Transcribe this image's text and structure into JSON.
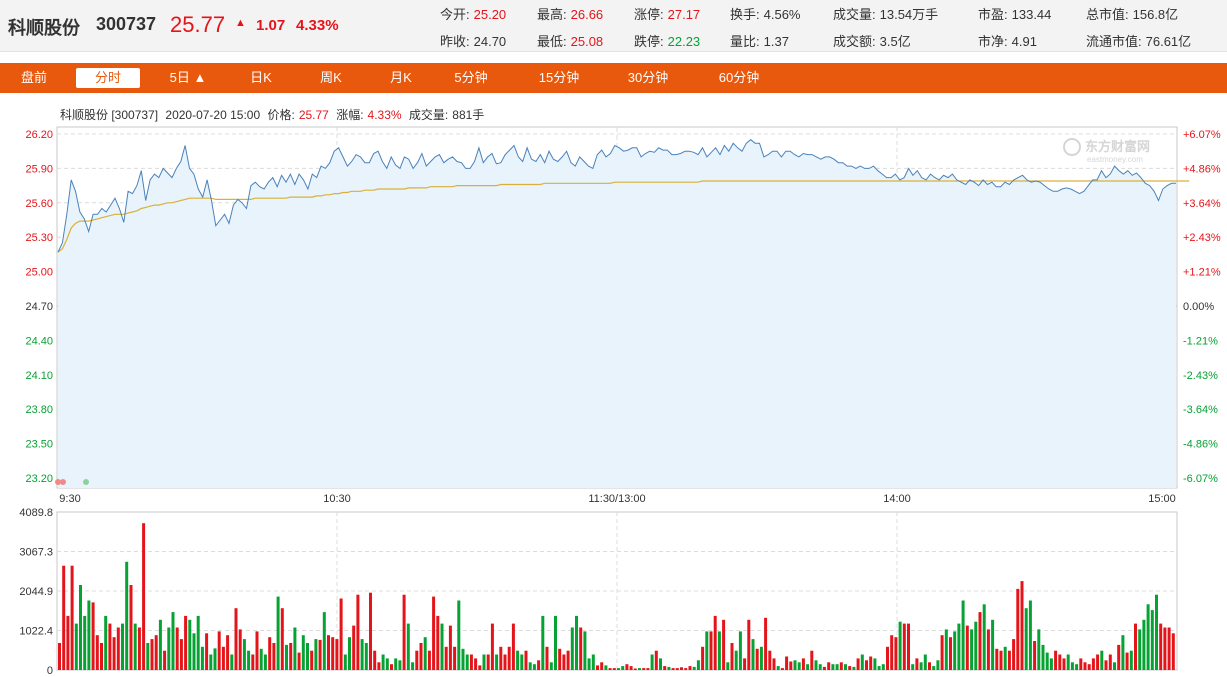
{
  "header": {
    "name": "科顺股份",
    "code": "300737",
    "price": "25.77",
    "arrow": "▲",
    "change": "1.07",
    "change_pct": "4.33%",
    "quotes": [
      {
        "label": "今开:",
        "value": "25.20",
        "color": "red"
      },
      {
        "label": "最高:",
        "value": "26.66",
        "color": "red"
      },
      {
        "label": "涨停:",
        "value": "27.17",
        "color": "red"
      },
      {
        "label": "换手:",
        "value": "4.56%",
        "color": "normal"
      },
      {
        "label": "成交量:",
        "value": "13.54万手",
        "color": "normal"
      },
      {
        "label": "市盈:",
        "value": "133.44",
        "color": "normal"
      },
      {
        "label": "总市值:",
        "value": "156.8亿",
        "color": "normal"
      },
      {
        "label": "昨收:",
        "value": "24.70",
        "color": "normal"
      },
      {
        "label": "最低:",
        "value": "25.08",
        "color": "red"
      },
      {
        "label": "跌停:",
        "value": "22.23",
        "color": "green"
      },
      {
        "label": "量比:",
        "value": "1.37",
        "color": "normal"
      },
      {
        "label": "成交额:",
        "value": "3.5亿",
        "color": "normal"
      },
      {
        "label": "市净:",
        "value": "4.91",
        "color": "normal"
      },
      {
        "label": "流通市值:",
        "value": "76.61亿",
        "color": "normal"
      }
    ]
  },
  "tabs": [
    {
      "label": "盘前",
      "active": false
    },
    {
      "label": "分时",
      "active": true
    },
    {
      "label": "5日 ▲",
      "active": false
    },
    {
      "label": "日K",
      "active": false
    },
    {
      "label": "周K",
      "active": false
    },
    {
      "label": "月K",
      "active": false
    },
    {
      "label": "5分钟",
      "active": false
    },
    {
      "label": "15分钟",
      "active": false
    },
    {
      "label": "30分钟",
      "active": false
    },
    {
      "label": "60分钟",
      "active": false
    }
  ],
  "info_line": {
    "name_code": "科顺股份 [300737]",
    "datetime": "2020-07-20 15:00",
    "price_label": "价格:",
    "price_value": "25.77",
    "change_label": "涨幅:",
    "change_value": "4.33%",
    "volume_label": "成交量:",
    "volume_value": "881手"
  },
  "watermark": {
    "brand": "东方财富网",
    "domain": "eastmoney.com"
  },
  "colors": {
    "price_line": "#4a82bb",
    "avg_line": "#d9b13a",
    "area_fill": "#e8f3fc",
    "up": "#e4151a",
    "down": "#07a234",
    "tab_bg": "#e9590d"
  },
  "chart_data": {
    "type": "line",
    "title": "",
    "prev_close": 24.7,
    "ylim": [
      23.2,
      26.2
    ],
    "yticks": [
      "26.20",
      "25.90",
      "25.60",
      "25.30",
      "25.00",
      "24.70",
      "24.40",
      "24.10",
      "23.80",
      "23.50",
      "23.20"
    ],
    "pct_ticks": [
      "+6.07%",
      "+4.86%",
      "+3.64%",
      "+2.43%",
      "+1.21%",
      "0.00%",
      "-1.21%",
      "-2.43%",
      "-3.64%",
      "-4.86%",
      "-6.07%"
    ],
    "x_ticks": [
      "9:30",
      "10:30",
      "11:30/13:00",
      "14:00",
      "15:00"
    ],
    "price": [
      25.17,
      25.25,
      25.5,
      25.8,
      25.7,
      25.52,
      25.46,
      25.35,
      25.5,
      25.5,
      25.55,
      25.52,
      25.58,
      25.64,
      25.55,
      25.43,
      25.7,
      25.68,
      25.75,
      25.88,
      25.62,
      25.8,
      25.85,
      25.82,
      25.9,
      25.86,
      25.82,
      25.9,
      25.96,
      26.1,
      25.9,
      25.85,
      25.72,
      25.65,
      25.8,
      25.62,
      25.4,
      25.45,
      25.5,
      25.42,
      25.58,
      25.63,
      25.6,
      25.55,
      25.75,
      25.78,
      25.74,
      25.72,
      25.78,
      25.82,
      25.74,
      25.84,
      25.78,
      25.85,
      25.76,
      25.85,
      25.8,
      25.72,
      25.85,
      25.82,
      25.92,
      25.9,
      25.95,
      26.05,
      26.08,
      26.0,
      25.92,
      25.96,
      26.02,
      26.0,
      25.95,
      25.95,
      26.03,
      26.05,
      25.96,
      25.9,
      26.0,
      25.93,
      25.9,
      26.0,
      25.98,
      25.9,
      25.95,
      26.03,
      25.92,
      25.96,
      26.0,
      26.02,
      25.95,
      25.98,
      26.0,
      25.96,
      25.95,
      25.9,
      25.9,
      25.96,
      26.08,
      25.95,
      26.0,
      26.03,
      25.94,
      25.95,
      26.02,
      26.06,
      26.1,
      26.0,
      25.96,
      26.08,
      25.98,
      25.96,
      26.02,
      25.95,
      26.05,
      25.98,
      25.96,
      26.0,
      26.05,
      25.95,
      25.92,
      26.0,
      25.96,
      25.92,
      25.9,
      26.02,
      26.06,
      26.0,
      26.03,
      26.1,
      26.08,
      26.05,
      26.06,
      26.08,
      26.08,
      26.0,
      26.03,
      26.05,
      26.04,
      26.08,
      26.06,
      26.06,
      26.02,
      26.02,
      26.03,
      26.05,
      26.05,
      26.04,
      26.02,
      26.08,
      26.0,
      26.04,
      26.08,
      26.02,
      26.1,
      26.05,
      26.12,
      26.08,
      26.05,
      26.12,
      26.15,
      26.12,
      26.12,
      26.0,
      26.02,
      26.05,
      26.05,
      26.0,
      26.05,
      26.05,
      26.02,
      26.0,
      26.03,
      26.02,
      26.02,
      26.0,
      25.98,
      26.0,
      26.0,
      25.98,
      25.95,
      25.95,
      25.92,
      25.92,
      25.9,
      25.92,
      25.9,
      25.9,
      25.92,
      25.88,
      25.85,
      25.82,
      25.82,
      25.85,
      25.8,
      25.82,
      25.9,
      25.84,
      25.88,
      25.82,
      25.8,
      25.85,
      25.82,
      25.8,
      25.84,
      25.82,
      25.85,
      25.8,
      25.78,
      25.76,
      25.8,
      25.78,
      25.75,
      25.8,
      25.76,
      25.78,
      25.74,
      25.74,
      25.78,
      25.76,
      25.8,
      25.82,
      25.84,
      25.8,
      25.78,
      25.79,
      25.78,
      25.75,
      25.72,
      25.7,
      25.7,
      25.72,
      25.73,
      25.72,
      25.7,
      25.68,
      25.7,
      25.75,
      25.8,
      25.8,
      25.88,
      25.82,
      25.85,
      25.92,
      25.88,
      25.85,
      25.88,
      25.84,
      25.86,
      25.82,
      25.77,
      25.75,
      25.7,
      25.62,
      25.72,
      25.75,
      25.77,
      25.77
    ],
    "avg_price": [
      25.17,
      25.2,
      25.28,
      25.38,
      25.42,
      25.44,
      25.44,
      25.44,
      25.45,
      25.46,
      25.47,
      25.48,
      25.49,
      25.5,
      25.5,
      25.5,
      25.51,
      25.52,
      25.53,
      25.55,
      25.56,
      25.57,
      25.58,
      25.58,
      25.59,
      25.6,
      25.6,
      25.61,
      25.62,
      25.63,
      25.64,
      25.64,
      25.64,
      25.64,
      25.64,
      25.64,
      25.63,
      25.63,
      25.63,
      25.63,
      25.63,
      25.63,
      25.63,
      25.63,
      25.63,
      25.64,
      25.64,
      25.64,
      25.64,
      25.64,
      25.64,
      25.64,
      25.64,
      25.65,
      25.65,
      25.65,
      25.65,
      25.65,
      25.65,
      25.66,
      25.66,
      25.67,
      25.67,
      25.68,
      25.68,
      25.69,
      25.69,
      25.7,
      25.7,
      25.7,
      25.71,
      25.71,
      25.71,
      25.72,
      25.72,
      25.72,
      25.72,
      25.72,
      25.72,
      25.72,
      25.73,
      25.73,
      25.73,
      25.73,
      25.73,
      25.74,
      25.74,
      25.74,
      25.74,
      25.74,
      25.74,
      25.75,
      25.75,
      25.75,
      25.75,
      25.75,
      25.75,
      25.75,
      25.75,
      25.75,
      25.75,
      25.76,
      25.76,
      25.76,
      25.76,
      25.76,
      25.76,
      25.76,
      25.76,
      25.76,
      25.76,
      25.77,
      25.77,
      25.77,
      25.77,
      25.77,
      25.77,
      25.77,
      25.77,
      25.77,
      25.77,
      25.77,
      25.77,
      25.77,
      25.77,
      25.77,
      25.77,
      25.78,
      25.78,
      25.78,
      25.78,
      25.78,
      25.78,
      25.78,
      25.78,
      25.78,
      25.78,
      25.78,
      25.78,
      25.78,
      25.78,
      25.78,
      25.78,
      25.78,
      25.78,
      25.78,
      25.78,
      25.79,
      25.79,
      25.79,
      25.79,
      25.79,
      25.79,
      25.79,
      25.79,
      25.79,
      25.79,
      25.79,
      25.79,
      25.79,
      25.79,
      25.79,
      25.79,
      25.79,
      25.79,
      25.79,
      25.79,
      25.79,
      25.79,
      25.79,
      25.79,
      25.79,
      25.79,
      25.79,
      25.79,
      25.79,
      25.79,
      25.79,
      25.79,
      25.79,
      25.79,
      25.79,
      25.79,
      25.79,
      25.79,
      25.79,
      25.79,
      25.79,
      25.79,
      25.79,
      25.79,
      25.79,
      25.79,
      25.79,
      25.79,
      25.79,
      25.79,
      25.79,
      25.79,
      25.79,
      25.79,
      25.79,
      25.79,
      25.79,
      25.79,
      25.79,
      25.79,
      25.79,
      25.79,
      25.79,
      25.79,
      25.79,
      25.79,
      25.79,
      25.79,
      25.79,
      25.79,
      25.79,
      25.79,
      25.79,
      25.79,
      25.79,
      25.79,
      25.79,
      25.79,
      25.79,
      25.79,
      25.79,
      25.79,
      25.79,
      25.79,
      25.79,
      25.79,
      25.79,
      25.79,
      25.79,
      25.79,
      25.79,
      25.79,
      25.79,
      25.79,
      25.79,
      25.79,
      25.79,
      25.79,
      25.79,
      25.79,
      25.79,
      25.79,
      25.79,
      25.79,
      25.79,
      25.79,
      25.79,
      25.79,
      25.79,
      25.79,
      25.79,
      25.79
    ],
    "volume_ylim": [
      0,
      4089.8
    ],
    "volume_ticks": [
      "4089.8",
      "3067.3",
      "2044.9",
      "1022.4",
      "0"
    ],
    "volume": [
      700,
      2700,
      1400,
      2700,
      1200,
      2200,
      1400,
      1800,
      1750,
      900,
      700,
      1400,
      1200,
      850,
      1100,
      1200,
      2800,
      2200,
      1200,
      1100,
      3800,
      700,
      800,
      900,
      1300,
      500,
      1100,
      1500,
      1100,
      800,
      1400,
      1300,
      950,
      1400,
      600,
      950,
      400,
      560,
      1000,
      600,
      900,
      400,
      1600,
      1050,
      800,
      500,
      400,
      1000,
      550,
      400,
      850,
      700,
      1900,
      1600,
      650,
      700,
      1100,
      450,
      900,
      700,
      500,
      800,
      780,
      1500,
      900,
      850,
      800,
      1850,
      400,
      850,
      1150,
      1950,
      800,
      700,
      2000,
      500,
      200,
      400,
      300,
      150,
      300,
      250,
      1950,
      1200,
      200,
      500,
      700,
      850,
      500,
      1900,
      1400,
      1200,
      600,
      1150,
      600,
      1800,
      550,
      400,
      400,
      300,
      120,
      400,
      400,
      1200,
      400,
      600,
      400,
      600,
      1200,
      500,
      400,
      500,
      200,
      150,
      250,
      1400,
      600,
      200,
      1400,
      550,
      400,
      500,
      1100,
      1400,
      1100,
      1000,
      300,
      400,
      120,
      200,
      120,
      50,
      50,
      50,
      100,
      150,
      100,
      40,
      50,
      50,
      50,
      400,
      500,
      300,
      100,
      80,
      50,
      50,
      70,
      50,
      100,
      80,
      250,
      600,
      1000,
      1000,
      1400,
      1000,
      1300,
      200,
      700,
      500,
      1000,
      300,
      1300,
      800,
      550,
      600,
      1350,
      500,
      300,
      100,
      50,
      350,
      220,
      250,
      200,
      300,
      150,
      500,
      250,
      150,
      80,
      200,
      150,
      150,
      200,
      150,
      100,
      80,
      300,
      400,
      250,
      350,
      300,
      100,
      150,
      600,
      900,
      850,
      1250,
      1200,
      1200,
      150,
      300,
      200,
      400,
      200,
      100,
      250,
      900,
      1050,
      850,
      1000,
      1200,
      1800,
      1150,
      1050,
      1250,
      1500,
      1700,
      1050,
      1300,
      550,
      500,
      600,
      500,
      800,
      2100,
      2300,
      1600,
      1800,
      750,
      1050,
      650,
      450,
      300,
      500,
      400,
      300,
      400,
      200,
      150,
      300,
      200,
      150,
      300,
      400,
      500,
      250,
      400,
      200,
      650,
      900,
      450,
      500,
      1200,
      1050,
      1300,
      1700,
      1550,
      1950,
      1200,
      1100,
      1100,
      950
    ]
  }
}
